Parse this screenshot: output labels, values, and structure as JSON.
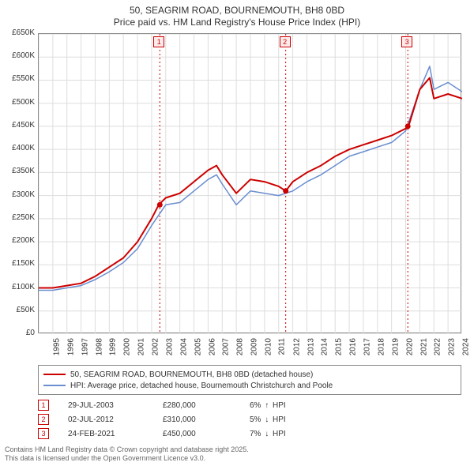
{
  "title": {
    "line1": "50, SEAGRIM ROAD, BOURNEMOUTH, BH8 0BD",
    "line2": "Price paid vs. HM Land Registry's House Price Index (HPI)"
  },
  "colors": {
    "series_price": "#cc0000",
    "series_hpi": "#6a8ecf",
    "grid": "#dddddd",
    "axis": "#888888",
    "event_line": "#cc0000",
    "event_fill": "#fdeaea",
    "text": "#333333",
    "footer_text": "#666666"
  },
  "chart": {
    "type": "line",
    "x_min": 1995,
    "x_max": 2025,
    "x_ticks": [
      1995,
      1996,
      1997,
      1998,
      1999,
      2000,
      2001,
      2002,
      2003,
      2004,
      2005,
      2006,
      2007,
      2008,
      2009,
      2010,
      2011,
      2012,
      2013,
      2014,
      2015,
      2016,
      2017,
      2018,
      2019,
      2020,
      2021,
      2022,
      2023,
      2024
    ],
    "y_min": 0,
    "y_max": 650000,
    "y_tick_step": 50000,
    "y_tick_labels": [
      "£0",
      "£50K",
      "£100K",
      "£150K",
      "£200K",
      "£250K",
      "£300K",
      "£350K",
      "£400K",
      "£450K",
      "£500K",
      "£550K",
      "£600K",
      "£650K"
    ],
    "line_width_price": 2.0,
    "line_width_hpi": 1.5,
    "series_price": {
      "x": [
        1995,
        1996,
        1997,
        1998,
        1999,
        2000,
        2001,
        2002,
        2003,
        2003.5,
        2004,
        2005,
        2006,
        2007,
        2007.6,
        2008,
        2009,
        2010,
        2011,
        2012,
        2012.5,
        2013,
        2014,
        2015,
        2016,
        2017,
        2018,
        2019,
        2020,
        2021,
        2021.2,
        2022,
        2022.7,
        2023,
        2024,
        2025
      ],
      "y": [
        100000,
        100000,
        105000,
        110000,
        125000,
        145000,
        165000,
        200000,
        250000,
        280000,
        295000,
        305000,
        330000,
        355000,
        365000,
        345000,
        305000,
        335000,
        330000,
        320000,
        310000,
        330000,
        350000,
        365000,
        385000,
        400000,
        410000,
        420000,
        430000,
        445000,
        450000,
        530000,
        555000,
        510000,
        520000,
        510000
      ]
    },
    "series_hpi": {
      "x": [
        1995,
        1996,
        1997,
        1998,
        1999,
        2000,
        2001,
        2002,
        2003,
        2004,
        2005,
        2006,
        2007,
        2007.6,
        2008,
        2009,
        2010,
        2011,
        2012,
        2013,
        2014,
        2015,
        2016,
        2017,
        2018,
        2019,
        2020,
        2021,
        2022,
        2022.7,
        2023,
        2024,
        2025
      ],
      "y": [
        95000,
        95000,
        100000,
        105000,
        118000,
        135000,
        155000,
        185000,
        235000,
        280000,
        285000,
        310000,
        335000,
        345000,
        325000,
        280000,
        310000,
        305000,
        300000,
        310000,
        330000,
        345000,
        365000,
        385000,
        395000,
        405000,
        415000,
        440000,
        530000,
        580000,
        530000,
        545000,
        525000
      ]
    }
  },
  "events": [
    {
      "n": "1",
      "year": 2003.58,
      "date": "29-JUL-2003",
      "price": "£280,000",
      "delta_pct": "6%",
      "delta_dir": "up",
      "delta_label": "HPI"
    },
    {
      "n": "2",
      "year": 2012.5,
      "date": "02-JUL-2012",
      "price": "£310,000",
      "delta_pct": "5%",
      "delta_dir": "down",
      "delta_label": "HPI"
    },
    {
      "n": "3",
      "year": 2021.15,
      "date": "24-FEB-2021",
      "price": "£450,000",
      "delta_pct": "7%",
      "delta_dir": "down",
      "delta_label": "HPI"
    }
  ],
  "sale_markers": [
    {
      "year": 2003.58,
      "value": 280000
    },
    {
      "year": 2012.5,
      "value": 310000
    },
    {
      "year": 2021.15,
      "value": 450000
    }
  ],
  "legend": {
    "series1": "50, SEAGRIM ROAD, BOURNEMOUTH, BH8 0BD (detached house)",
    "series2": "HPI: Average price, detached house, Bournemouth Christchurch and Poole"
  },
  "footer": {
    "line1": "Contains HM Land Registry data © Crown copyright and database right 2025.",
    "line2": "This data is licensed under the Open Government Licence v3.0."
  }
}
